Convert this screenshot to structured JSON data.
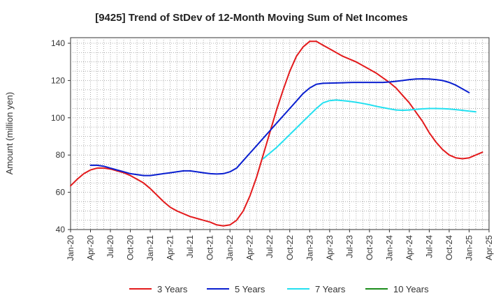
{
  "chart_data": {
    "type": "line",
    "title": "[9425]  Trend of StDev of 12-Month Moving Sum of Net Incomes",
    "ylabel": "Amount (million yen)",
    "xlabel": "",
    "ylim": [
      40,
      143
    ],
    "yticks": [
      40,
      60,
      80,
      100,
      120,
      140
    ],
    "x_tick_labels": [
      "Jan-20",
      "Apr-20",
      "Jul-20",
      "Oct-20",
      "Jan-21",
      "Apr-21",
      "Jul-21",
      "Oct-21",
      "Jan-22",
      "Apr-22",
      "Jul-22",
      "Oct-22",
      "Jan-23",
      "Apr-23",
      "Jul-23",
      "Oct-23",
      "Jan-24",
      "Apr-24",
      "Jul-24",
      "Oct-24",
      "Jan-25",
      "Apr-25"
    ],
    "x_start": "Jan-20",
    "grid": true,
    "legend_position": "bottom",
    "series": [
      {
        "name": "3 Years",
        "color": "#e31a1c",
        "values": [
          63.5,
          67,
          70,
          72,
          73,
          73,
          72.5,
          71.5,
          70.5,
          69,
          67,
          65,
          62,
          58.5,
          55,
          52,
          50,
          48.5,
          47,
          46,
          45,
          44,
          42.5,
          42,
          42.5,
          45,
          50,
          58,
          68,
          80,
          92,
          104,
          115,
          125,
          133,
          138,
          141,
          141,
          139,
          137,
          135,
          133,
          131.5,
          130,
          128,
          126,
          124,
          121.5,
          119,
          116,
          112,
          108,
          103,
          98,
          92,
          87,
          83,
          80,
          78.5,
          78,
          78.5,
          80,
          81.5
        ]
      },
      {
        "name": "5 Years",
        "color": "#0a1fd0",
        "values": [
          null,
          null,
          null,
          74.5,
          74.5,
          74,
          73,
          72,
          71,
          70,
          69.5,
          69,
          69,
          69.5,
          70,
          70.5,
          71,
          71.5,
          71.5,
          71,
          70.5,
          70,
          69.8,
          70,
          71,
          73,
          77,
          81,
          85,
          89,
          93,
          97,
          101,
          105,
          109,
          113,
          116,
          118,
          118.5,
          118.6,
          118.7,
          118.8,
          118.9,
          119,
          119,
          119,
          119,
          119,
          119.2,
          119.6,
          120,
          120.5,
          120.8,
          120.9,
          120.8,
          120.5,
          120,
          119,
          117.5,
          115.5,
          113.5
        ]
      },
      {
        "name": "7 Years",
        "color": "#22e0f0",
        "values": [
          null,
          null,
          null,
          null,
          null,
          null,
          null,
          null,
          null,
          null,
          null,
          null,
          null,
          null,
          null,
          null,
          null,
          null,
          null,
          null,
          null,
          null,
          null,
          null,
          null,
          null,
          null,
          null,
          null,
          78,
          81,
          84,
          87.5,
          91,
          94.5,
          98,
          101.5,
          105,
          108,
          109.2,
          109.5,
          109.2,
          108.8,
          108.3,
          107.7,
          107,
          106.2,
          105.5,
          104.8,
          104.2,
          104,
          104.2,
          104.5,
          104.8,
          105,
          105,
          104.9,
          104.7,
          104.4,
          104,
          103.6,
          103.2
        ]
      },
      {
        "name": "10 Years",
        "color": "#1a8c1a",
        "values": []
      }
    ]
  }
}
